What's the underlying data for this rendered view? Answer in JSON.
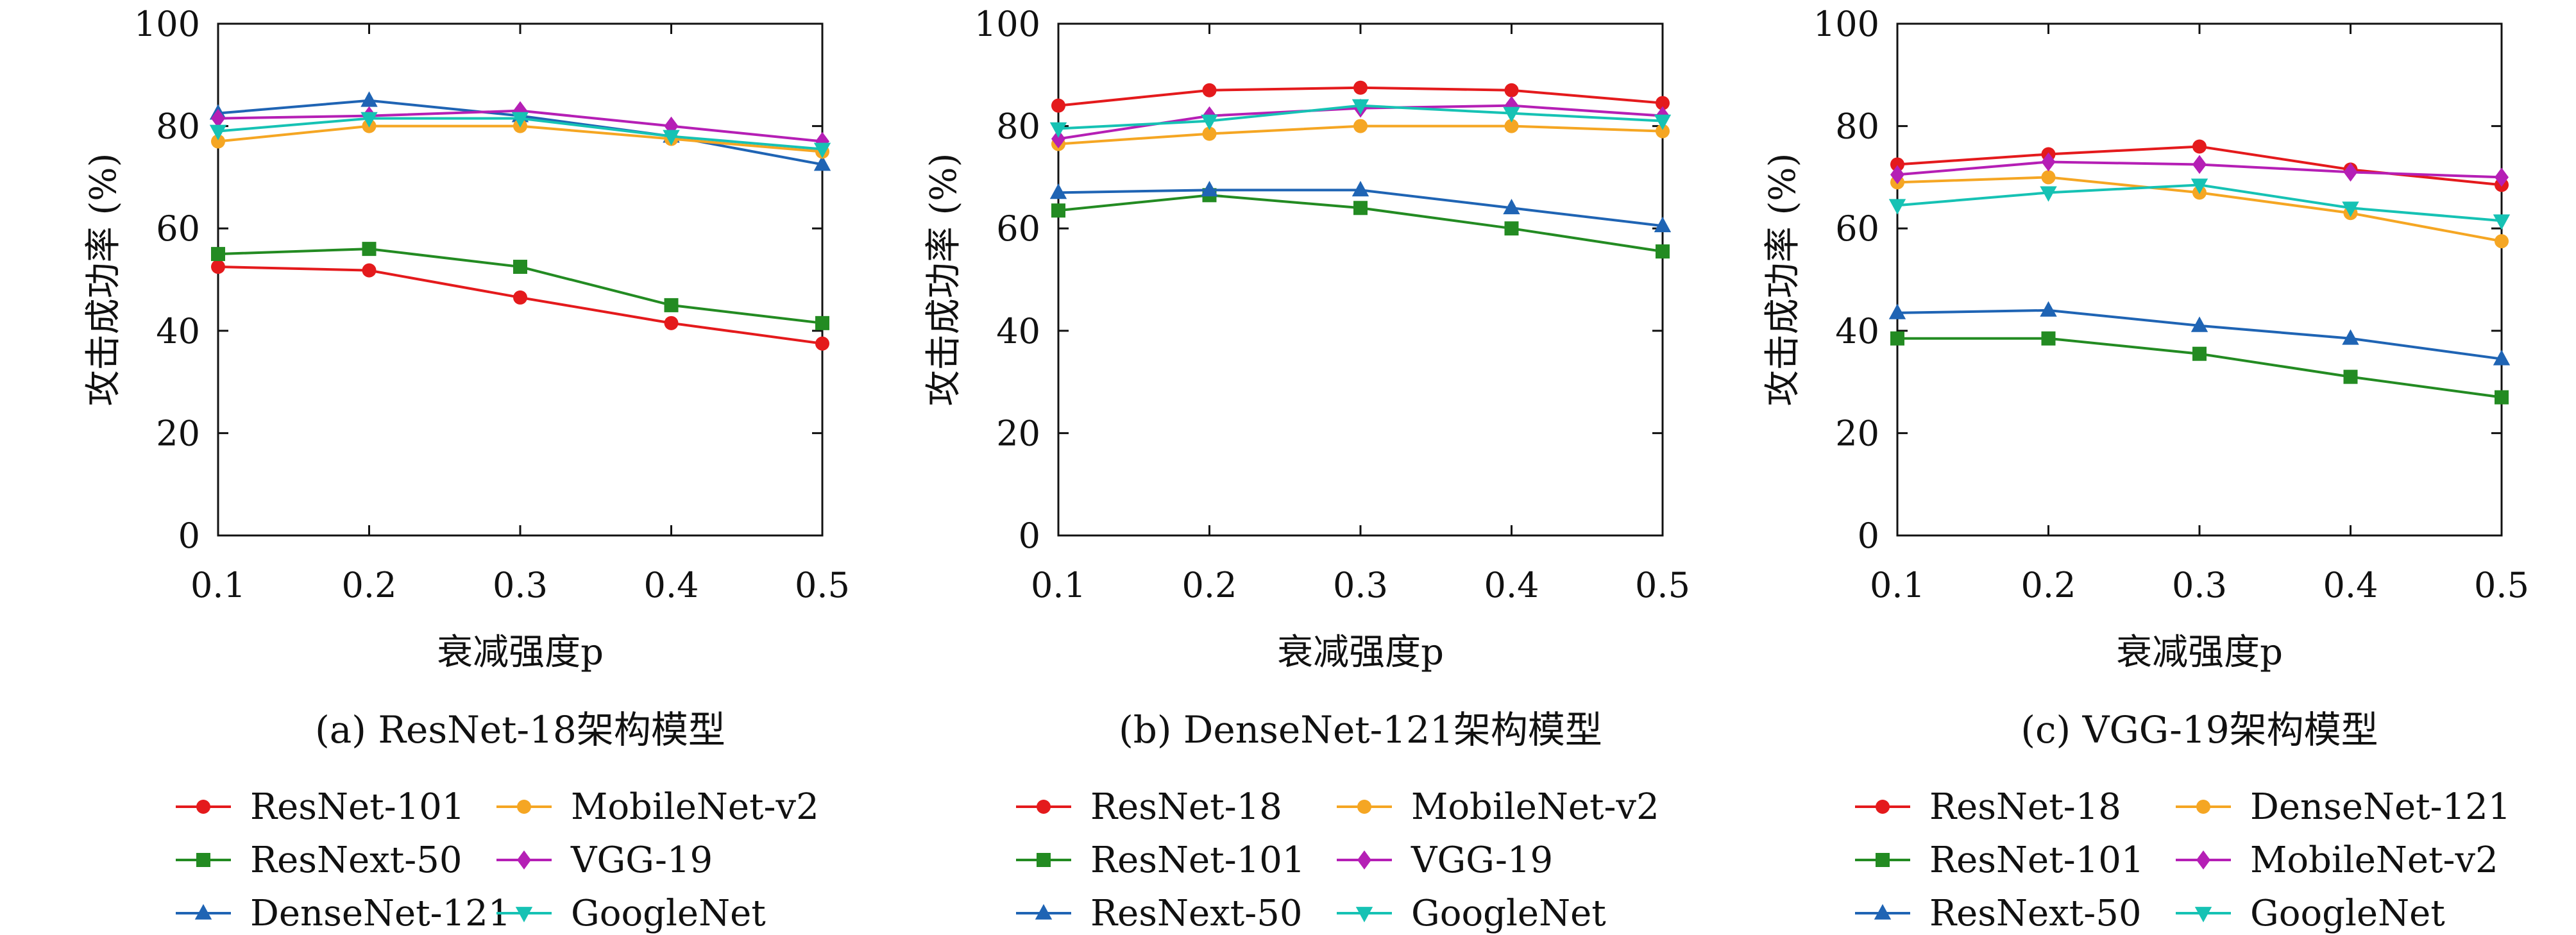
{
  "chart_data": [
    {
      "type": "line",
      "caption": "(a) ResNet-18架构模型",
      "xlabel": "衰减强度p",
      "ylabel": "攻击成功率 (%)",
      "x": [
        0.1,
        0.2,
        0.3,
        0.4,
        0.5
      ],
      "xlim": [
        0.1,
        0.5
      ],
      "ylim": [
        0,
        100
      ],
      "xticks": [
        "0.1",
        "0.2",
        "0.3",
        "0.4",
        "0.5"
      ],
      "yticks": [
        "0",
        "20",
        "40",
        "60",
        "80",
        "100"
      ],
      "grid": false,
      "legend_position": "bottom",
      "series": [
        {
          "name": "ResNet-101",
          "values": [
            52.5,
            51.8,
            46.5,
            41.5,
            37.5
          ],
          "color": "#e41a1c",
          "marker": "circle"
        },
        {
          "name": "ResNext-50",
          "values": [
            55.0,
            56.0,
            52.5,
            45.0,
            41.5
          ],
          "color": "#238b22",
          "marker": "square"
        },
        {
          "name": "DenseNet-121",
          "values": [
            82.5,
            85.0,
            82.0,
            78.0,
            72.5
          ],
          "color": "#1f64b4",
          "marker": "triangle"
        },
        {
          "name": "MobileNet-v2",
          "values": [
            77.0,
            80.0,
            80.0,
            77.5,
            75.0
          ],
          "color": "#f5a623",
          "marker": "circle"
        },
        {
          "name": "VGG-19",
          "values": [
            81.5,
            82.0,
            83.0,
            80.0,
            77.0
          ],
          "color": "#b51fb5",
          "marker": "diamond"
        },
        {
          "name": "GoogleNet",
          "values": [
            79.0,
            81.5,
            81.5,
            78.0,
            75.5
          ],
          "color": "#16c2b4",
          "marker": "triangle-down"
        }
      ]
    },
    {
      "type": "line",
      "caption": "(b) DenseNet-121架构模型",
      "xlabel": "衰减强度p",
      "ylabel": "攻击成功率 (%)",
      "x": [
        0.1,
        0.2,
        0.3,
        0.4,
        0.5
      ],
      "xlim": [
        0.1,
        0.5
      ],
      "ylim": [
        0,
        100
      ],
      "xticks": [
        "0.1",
        "0.2",
        "0.3",
        "0.4",
        "0.5"
      ],
      "yticks": [
        "0",
        "20",
        "40",
        "60",
        "80",
        "100"
      ],
      "grid": false,
      "legend_position": "bottom",
      "series": [
        {
          "name": "ResNet-18",
          "values": [
            84.0,
            87.0,
            87.5,
            87.0,
            84.5
          ],
          "color": "#e41a1c",
          "marker": "circle"
        },
        {
          "name": "ResNet-101",
          "values": [
            63.5,
            66.5,
            64.0,
            60.0,
            55.5
          ],
          "color": "#238b22",
          "marker": "square"
        },
        {
          "name": "ResNext-50",
          "values": [
            67.0,
            67.5,
            67.5,
            64.0,
            60.5
          ],
          "color": "#1f64b4",
          "marker": "triangle"
        },
        {
          "name": "MobileNet-v2",
          "values": [
            76.5,
            78.5,
            80.0,
            80.0,
            79.0
          ],
          "color": "#f5a623",
          "marker": "circle"
        },
        {
          "name": "VGG-19",
          "values": [
            77.5,
            82.0,
            83.5,
            84.0,
            82.0
          ],
          "color": "#b51fb5",
          "marker": "diamond"
        },
        {
          "name": "GoogleNet",
          "values": [
            79.5,
            81.0,
            84.0,
            82.5,
            81.0
          ],
          "color": "#16c2b4",
          "marker": "triangle-down"
        }
      ]
    },
    {
      "type": "line",
      "caption": "(c) VGG-19架构模型",
      "xlabel": "衰减强度p",
      "ylabel": "攻击成功率 (%)",
      "x": [
        0.1,
        0.2,
        0.3,
        0.4,
        0.5
      ],
      "xlim": [
        0.1,
        0.5
      ],
      "ylim": [
        0,
        100
      ],
      "xticks": [
        "0.1",
        "0.2",
        "0.3",
        "0.4",
        "0.5"
      ],
      "yticks": [
        "0",
        "20",
        "40",
        "60",
        "80",
        "100"
      ],
      "grid": false,
      "legend_position": "bottom",
      "series": [
        {
          "name": "ResNet-18",
          "values": [
            72.5,
            74.5,
            76.0,
            71.5,
            68.5
          ],
          "color": "#e41a1c",
          "marker": "circle"
        },
        {
          "name": "ResNet-101",
          "values": [
            38.5,
            38.5,
            35.5,
            31.0,
            27.0
          ],
          "color": "#238b22",
          "marker": "square"
        },
        {
          "name": "ResNext-50",
          "values": [
            43.5,
            44.0,
            41.0,
            38.5,
            34.5
          ],
          "color": "#1f64b4",
          "marker": "triangle"
        },
        {
          "name": "DenseNet-121",
          "values": [
            69.0,
            70.0,
            67.0,
            63.0,
            57.5
          ],
          "color": "#f5a623",
          "marker": "circle"
        },
        {
          "name": "MobileNet-v2",
          "values": [
            70.5,
            73.0,
            72.5,
            71.0,
            70.0
          ],
          "color": "#b51fb5",
          "marker": "diamond"
        },
        {
          "name": "GoogleNet",
          "values": [
            64.5,
            67.0,
            68.5,
            64.0,
            61.5
          ],
          "color": "#16c2b4",
          "marker": "triangle-down"
        }
      ]
    }
  ]
}
